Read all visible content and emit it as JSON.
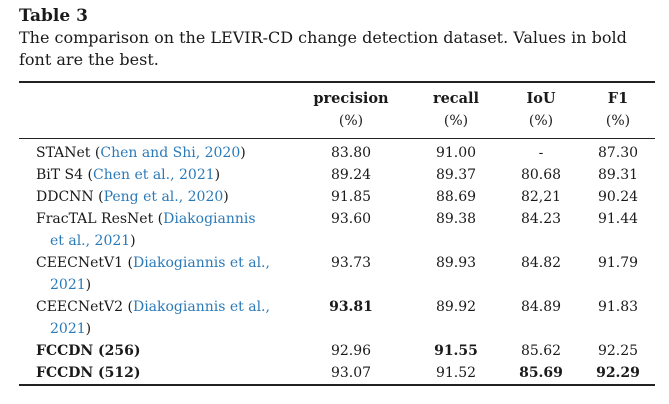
{
  "table": {
    "label": "Table 3",
    "caption": "The comparison on the LEVIR-CD change detection dataset. Values in bold font are the best.",
    "columns": [
      {
        "name": "precision",
        "unit": "(%)"
      },
      {
        "name": "recall",
        "unit": "(%)"
      },
      {
        "name": "IoU",
        "unit": "(%)"
      },
      {
        "name": "F1",
        "unit": "(%)"
      }
    ],
    "rows": [
      {
        "method": "STANet",
        "cite": "Chen and Shi, 2020",
        "cite_line2": "",
        "precision": "83.80",
        "recall": "91.00",
        "iou": "-",
        "f1": "87.30"
      },
      {
        "method": "BiT S4",
        "cite": "Chen et al., 2021",
        "cite_line2": "",
        "precision": "89.24",
        "recall": "89.37",
        "iou": "80.68",
        "f1": "89.31"
      },
      {
        "method": "DDCNN",
        "cite": "Peng et al., 2020",
        "cite_line2": "",
        "precision": "91.85",
        "recall": "88.69",
        "iou": "82,21",
        "f1": "90.24"
      },
      {
        "method": "FracTAL ResNet",
        "cite": "Diakogiannis",
        "cite_line2": "et al., 2021",
        "precision": "93.60",
        "recall": "89.38",
        "iou": "84.23",
        "f1": "91.44"
      },
      {
        "method": "CEECNetV1",
        "cite": "Diakogiannis et al.,",
        "cite_line2": "2021",
        "precision": "93.73",
        "recall": "89.93",
        "iou": "84.82",
        "f1": "91.79"
      },
      {
        "method": "CEECNetV2",
        "cite": "Diakogiannis et al.,",
        "cite_line2": "2021",
        "precision": "93.81",
        "recall": "89.92",
        "iou": "84.89",
        "f1": "91.83"
      },
      {
        "method": "FCCDN (256)",
        "cite": "",
        "cite_line2": "",
        "precision": "92.96",
        "recall": "91.55",
        "iou": "85.62",
        "f1": "92.25"
      },
      {
        "method": "FCCDN (512)",
        "cite": "",
        "cite_line2": "",
        "precision": "93.07",
        "recall": "91.52",
        "iou": "85.69",
        "f1": "92.29"
      }
    ]
  }
}
